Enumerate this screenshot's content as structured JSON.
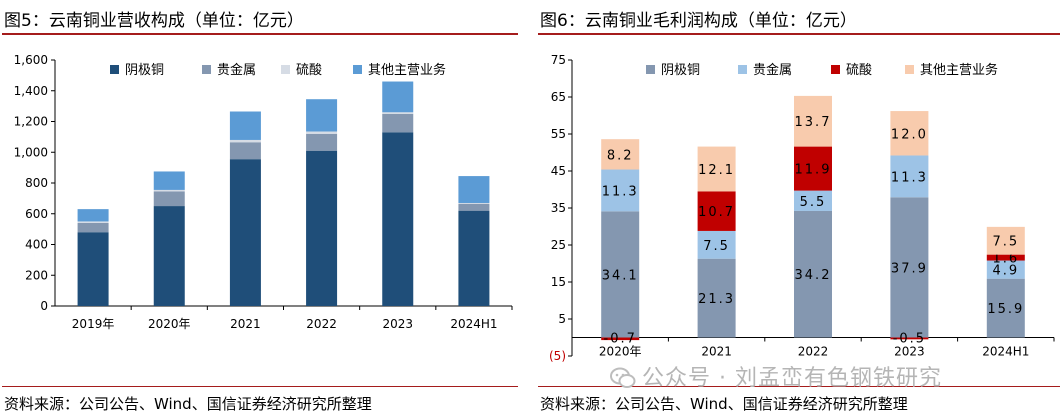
{
  "left": {
    "title": "图5：云南铜业营收构成（单位：亿元）",
    "source": "资料来源：公司公告、Wind、国信证券经济研究所整理"
  },
  "right": {
    "title": "图6：云南铜业毛利润构成（单位：亿元）",
    "source": "资料来源：公司公告、Wind、国信证券经济研究所整理"
  },
  "watermark": "公众号 · 刘孟峦有色钢铁研究",
  "colors": {
    "cathode": "#1f4e79",
    "cathode_gp": "#8497b0",
    "precious": "#8497b0",
    "precious_gp": "#9dc3e6",
    "acid": "#d6dce5",
    "acid_gp": "#c00000",
    "other": "#5b9bd5",
    "other_gp": "#f8cbad",
    "title_rule": "#a51c1c"
  },
  "chart_data": [
    {
      "type": "bar",
      "stacked": true,
      "categories": [
        "2019年",
        "2020年",
        "2021",
        "2022",
        "2023",
        "2024H1"
      ],
      "series": [
        {
          "name": "阴极铜",
          "values": [
            480,
            650,
            955,
            1010,
            1130,
            620
          ]
        },
        {
          "name": "贵金属",
          "values": [
            60,
            95,
            110,
            110,
            120,
            45
          ]
        },
        {
          "name": "硫酸",
          "values": [
            10,
            10,
            15,
            15,
            10,
            5
          ]
        },
        {
          "name": "其他主营业务",
          "values": [
            80,
            120,
            185,
            210,
            200,
            175
          ]
        }
      ],
      "ylim": [
        0,
        1600
      ],
      "yticks": [
        "0",
        "200",
        "400",
        "600",
        "800",
        "1,000",
        "1,200",
        "1,400",
        "1,600"
      ],
      "legend": "top"
    },
    {
      "type": "bar",
      "stacked": true,
      "categories": [
        "2020年",
        "2021",
        "2022",
        "2023",
        "2024H1"
      ],
      "series": [
        {
          "name": "阴极铜",
          "values": [
            34.1,
            21.3,
            34.2,
            37.9,
            15.9
          ],
          "labels": [
            "34.1",
            "21.3",
            "34.2",
            "37.9",
            "15.9"
          ]
        },
        {
          "name": "贵金属",
          "values": [
            11.3,
            7.5,
            5.5,
            11.3,
            4.9
          ],
          "labels": [
            "11.3",
            "7.5",
            "5.5",
            "11.3",
            "4.9"
          ]
        },
        {
          "name": "硫酸",
          "values": [
            -0.7,
            10.7,
            11.9,
            -0.5,
            1.6
          ],
          "labels": [
            "-0.7",
            "10.7",
            "11.9",
            "-0.5",
            "1.6"
          ]
        },
        {
          "name": "其他主营业务",
          "values": [
            8.2,
            12.1,
            13.7,
            12.0,
            7.5
          ],
          "labels": [
            "8.2",
            "12.1",
            "13.7",
            "12.0",
            "7.5"
          ]
        }
      ],
      "ylim": [
        -5,
        75
      ],
      "yticks": [
        "(5)",
        "5",
        "15",
        "25",
        "35",
        "45",
        "55",
        "65",
        "75"
      ],
      "legend": "top"
    }
  ]
}
